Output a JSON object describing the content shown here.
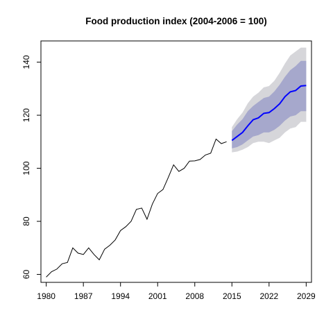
{
  "chart_data": {
    "type": "line",
    "title": "Food production index (2004-2006 = 100)",
    "xlabel": "",
    "ylabel": "",
    "xlim": [
      1979,
      2030
    ],
    "ylim": [
      57,
      148
    ],
    "x_ticks": [
      1980,
      1987,
      1994,
      2001,
      2008,
      2015,
      2022,
      2029
    ],
    "y_ticks": [
      60,
      80,
      100,
      120,
      140
    ],
    "grid": false,
    "colors": {
      "history": "#000000",
      "forecast_mean": "#0000ff",
      "band_80": "#a6a8cc",
      "band_95": "#d6d6da"
    },
    "series": [
      {
        "x": [
          1980,
          1981,
          1982,
          1983,
          1984,
          1985,
          1986,
          1987,
          1988,
          1989,
          1990,
          1991,
          1992,
          1993,
          1994,
          1995,
          1996,
          1997,
          1998,
          1999,
          2000,
          2001,
          2002,
          2003,
          2004,
          2005,
          2006,
          2007,
          2008,
          2009,
          2010,
          2011,
          2012,
          2013,
          2014
        ],
        "values": [
          59.0,
          61.0,
          62.0,
          64.0,
          64.5,
          70.0,
          68.0,
          67.5,
          70.0,
          67.5,
          65.5,
          69.5,
          71.0,
          73.0,
          76.5,
          78.0,
          80.0,
          84.5,
          85.0,
          80.8,
          86.5,
          90.5,
          92.0,
          96.5,
          101.3,
          98.8,
          100.0,
          102.7,
          102.8,
          103.3,
          105.0,
          105.7,
          111.0,
          109.3,
          110.0
        ]
      },
      {
        "x": [
          2015,
          2016,
          2017,
          2018,
          2019,
          2020,
          2021,
          2022,
          2023,
          2024,
          2025,
          2026,
          2027,
          2028,
          2029
        ],
        "values": [
          110.5,
          112.0,
          113.5,
          116.0,
          118.3,
          119.0,
          120.7,
          121.0,
          122.5,
          124.3,
          127.0,
          128.8,
          129.3,
          131.0,
          131.2
        ],
        "lower80": [
          107.5,
          108.0,
          109.0,
          110.5,
          112.0,
          112.5,
          113.5,
          113.5,
          114.5,
          116.0,
          118.0,
          119.5,
          120.0,
          121.5,
          121.5
        ],
        "upper80": [
          114.0,
          116.5,
          118.5,
          121.5,
          123.5,
          125.0,
          126.5,
          127.0,
          129.0,
          131.5,
          134.5,
          137.0,
          138.5,
          140.5,
          140.5
        ],
        "lower95": [
          106.0,
          106.3,
          107.0,
          108.0,
          109.5,
          110.0,
          110.0,
          109.5,
          110.5,
          111.5,
          113.5,
          115.0,
          115.5,
          117.5,
          117.5
        ],
        "upper95": [
          115.5,
          118.5,
          121.0,
          124.5,
          127.0,
          128.5,
          130.5,
          131.0,
          133.0,
          136.0,
          139.5,
          142.5,
          144.0,
          145.5,
          145.5
        ]
      }
    ]
  }
}
